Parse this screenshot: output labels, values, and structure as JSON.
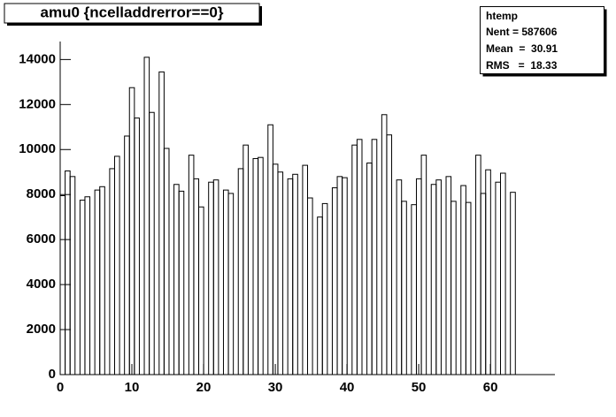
{
  "chart_data": {
    "type": "histogram",
    "title": "amu0 {ncelladdrerror==0}",
    "stats": {
      "name": "htemp",
      "lines": [
        "Nent = 587606",
        "Mean  =  30.91",
        "RMS   =  18.33"
      ]
    },
    "bins": [
      0,
      0.69,
      1.38,
      2.07,
      2.76,
      3.45,
      4.14,
      4.83,
      5.52,
      6.21,
      6.9,
      7.59,
      8.28,
      8.97,
      9.66,
      10.35,
      11.04,
      11.73,
      12.42,
      13.11,
      13.8,
      14.49,
      15.18,
      15.87,
      16.56,
      17.25,
      17.94,
      18.63,
      19.32,
      20.01,
      20.7,
      21.39,
      22.08,
      22.77,
      23.46,
      24.15,
      24.84,
      25.53,
      26.22,
      26.91,
      27.6,
      28.29,
      28.98,
      29.67,
      30.36,
      31.05,
      31.74,
      32.43,
      33.12,
      33.81,
      34.5,
      35.19,
      35.88,
      36.57,
      37.26,
      37.95,
      38.64,
      39.33,
      40.02,
      40.71,
      41.4,
      42.09,
      42.78,
      43.47,
      44.16,
      44.85,
      45.54,
      46.23,
      46.92,
      47.61,
      48.3,
      48.99,
      49.68,
      50.37,
      51.06,
      51.75,
      52.44,
      53.13,
      53.82,
      54.51,
      55.2,
      55.89,
      56.58,
      57.27,
      57.96,
      58.65,
      59.34,
      60.03,
      60.72,
      61.41,
      62.1,
      62.79,
      63.48,
      64.17,
      64.86,
      65.55,
      66.24,
      66.93,
      67.62,
      68.31,
      69
    ],
    "values": [
      7950,
      9050,
      8800,
      0,
      7750,
      7900,
      0,
      8200,
      8350,
      0,
      9150,
      9700,
      0,
      10600,
      12750,
      11400,
      0,
      14100,
      11650,
      0,
      13450,
      10050,
      0,
      8450,
      8150,
      0,
      9750,
      8700,
      7450,
      0,
      8550,
      8650,
      0,
      8200,
      8050,
      0,
      9150,
      10200,
      0,
      9600,
      9650,
      0,
      11100,
      9350,
      9000,
      0,
      8700,
      8900,
      0,
      9300,
      7850,
      0,
      7000,
      7600,
      0,
      8300,
      8800,
      8750,
      0,
      10200,
      10450,
      0,
      9400,
      10450,
      0,
      11550,
      10650,
      0,
      8650,
      7700,
      0,
      7550,
      8700,
      9750,
      0,
      8450,
      8650,
      0,
      8800,
      7700,
      0,
      8400,
      7650,
      0,
      9750,
      8050,
      9100,
      0,
      8550,
      8950,
      0,
      8100,
      0,
      0,
      0,
      0,
      0,
      0,
      0,
      0
    ],
    "color": "#000000",
    "xlim": [
      0,
      69
    ],
    "xticks": [
      0,
      10,
      20,
      30,
      40,
      50,
      60
    ],
    "ylim": [
      0,
      14800
    ],
    "yticks": [
      0,
      2000,
      4000,
      6000,
      8000,
      10000,
      12000,
      14000
    ]
  }
}
